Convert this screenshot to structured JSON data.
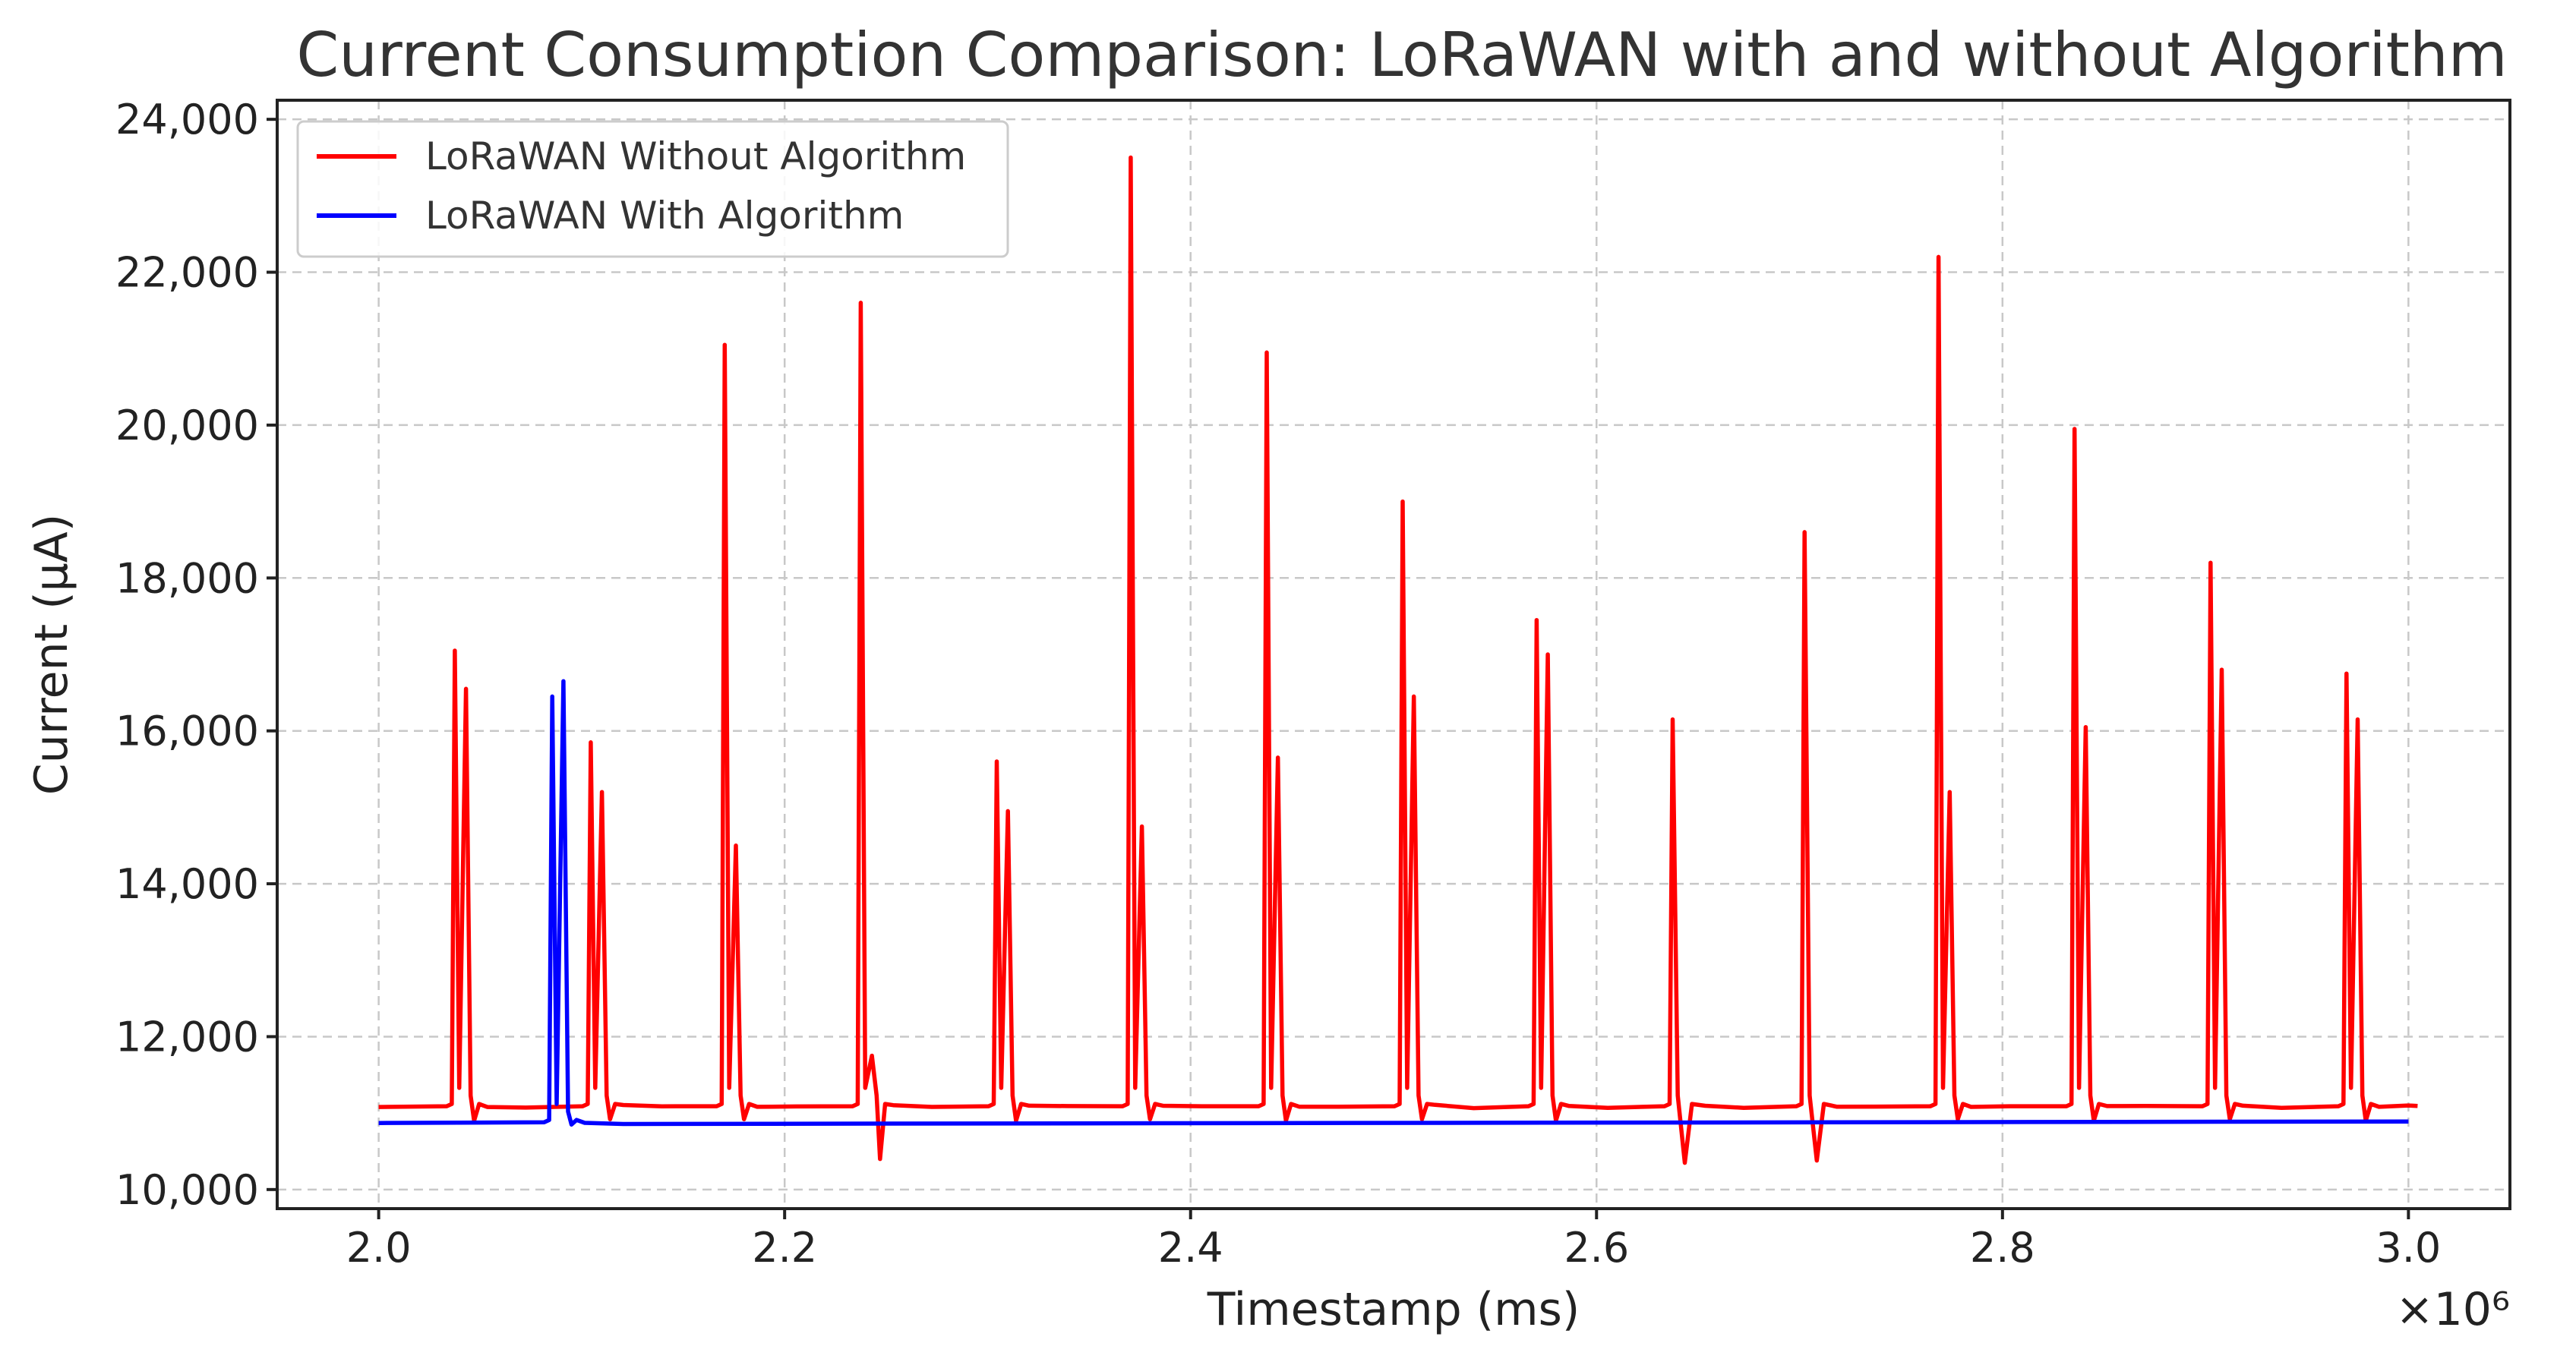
{
  "chart_data": {
    "type": "line",
    "title": "Current Consumption Comparison: LoRaWAN with and without Algorithm",
    "xlabel": "Timestamp (ms)",
    "ylabel": "Current (µA)",
    "x_multiplier_label": "×10⁶",
    "xlim": [
      1.95,
      3.05
    ],
    "ylim": [
      9750,
      24250
    ],
    "x_ticks": [
      2.0,
      2.2,
      2.4,
      2.6,
      2.8,
      3.0
    ],
    "x_tick_labels": [
      "2.0",
      "2.2",
      "2.4",
      "2.6",
      "2.8",
      "3.0"
    ],
    "y_ticks": [
      10000,
      12000,
      14000,
      16000,
      18000,
      20000,
      22000,
      24000
    ],
    "y_tick_labels": [
      "10,000",
      "12,000",
      "14,000",
      "16,000",
      "18,000",
      "20,000",
      "22,000",
      "24,000"
    ],
    "grid": true,
    "legend_position": "top-left",
    "series": [
      {
        "name": "LoRaWAN Without Algorithm",
        "color": "#ff0000",
        "baseline": 11080,
        "x_range": [
          2.0,
          3.0
        ],
        "events": [
          {
            "x": 2.0375,
            "peaks": [
              17050,
              16550
            ],
            "dip": 10900
          },
          {
            "x": 2.1045,
            "peaks": [
              15850,
              15200
            ],
            "dip": 10920
          },
          {
            "x": 2.1705,
            "peaks": [
              21050,
              14500
            ],
            "dip": 10920
          },
          {
            "x": 2.2375,
            "peaks": [
              21600,
              11750
            ],
            "dip": 10400
          },
          {
            "x": 2.3045,
            "peaks": [
              15600,
              14950
            ],
            "dip": 10900
          },
          {
            "x": 2.3705,
            "peaks": [
              23500,
              14750
            ],
            "dip": 10920
          },
          {
            "x": 2.4375,
            "peaks": [
              20950,
              15650
            ],
            "dip": 10900
          },
          {
            "x": 2.5045,
            "peaks": [
              19000,
              16450
            ],
            "dip": 10920
          },
          {
            "x": 2.5705,
            "peaks": [
              17450,
              17000
            ],
            "dip": 10900
          },
          {
            "x": 2.6375,
            "peaks": [
              16150
            ],
            "dip": 10350
          },
          {
            "x": 2.7025,
            "peaks": [
              18600
            ],
            "dip": 10380
          },
          {
            "x": 2.7685,
            "peaks": [
              22200,
              15200
            ],
            "dip": 10920
          },
          {
            "x": 2.8355,
            "peaks": [
              19950,
              16050
            ],
            "dip": 10900
          },
          {
            "x": 2.9025,
            "peaks": [
              18200,
              16800
            ],
            "dip": 10920
          },
          {
            "x": 2.9695,
            "peaks": [
              16750,
              16150
            ],
            "dip": 10900
          }
        ]
      },
      {
        "name": "LoRaWAN With Algorithm",
        "color": "#0000ff",
        "baseline": 10870,
        "x_range": [
          2.0,
          3.0
        ],
        "events": [
          {
            "x": 2.0855,
            "peaks": [
              16450,
              16650
            ],
            "dip": 10850
          }
        ]
      }
    ]
  }
}
